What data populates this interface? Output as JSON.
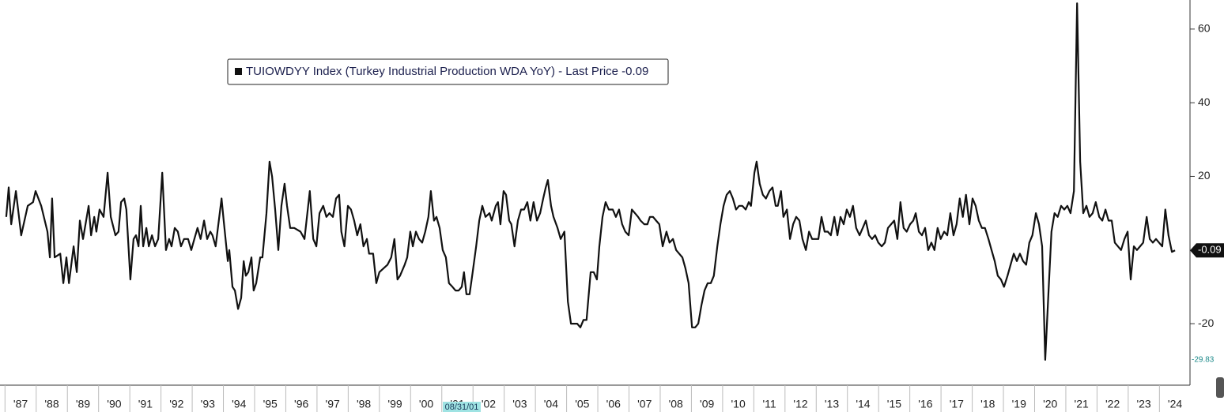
{
  "chart_data": {
    "type": "line",
    "legend": "TUIOWDYY Index (Turkey Industrial Production WDA YoY) - Last Price -0.09",
    "last_value": -0.09,
    "min_value": -29.83,
    "cursor_label": "08/31/01",
    "xlim": [
      1986.84,
      2024.98
    ],
    "ylim": [
      -36.7,
      67.9
    ],
    "yticks": [
      -20,
      20,
      40,
      60
    ],
    "xticks": [
      {
        "value": 1987,
        "label": "'87"
      },
      {
        "value": 1988,
        "label": "'88"
      },
      {
        "value": 1989,
        "label": "'89"
      },
      {
        "value": 1990,
        "label": "'90"
      },
      {
        "value": 1991,
        "label": "'91"
      },
      {
        "value": 1992,
        "label": "'92"
      },
      {
        "value": 1993,
        "label": "'93"
      },
      {
        "value": 1994,
        "label": "'94"
      },
      {
        "value": 1995,
        "label": "'95"
      },
      {
        "value": 1996,
        "label": "'96"
      },
      {
        "value": 1997,
        "label": "'97"
      },
      {
        "value": 1998,
        "label": "'98"
      },
      {
        "value": 1999,
        "label": "'99"
      },
      {
        "value": 2000,
        "label": "'00"
      },
      {
        "value": 2001,
        "label": "'01"
      },
      {
        "value": 2002,
        "label": "'02"
      },
      {
        "value": 2003,
        "label": "'03"
      },
      {
        "value": 2004,
        "label": "'04"
      },
      {
        "value": 2005,
        "label": "'05"
      },
      {
        "value": 2006,
        "label": "'06"
      },
      {
        "value": 2007,
        "label": "'07"
      },
      {
        "value": 2008,
        "label": "'08"
      },
      {
        "value": 2009,
        "label": "'09"
      },
      {
        "value": 2010,
        "label": "'10"
      },
      {
        "value": 2011,
        "label": "'11"
      },
      {
        "value": 2012,
        "label": "'12"
      },
      {
        "value": 2013,
        "label": "'13"
      },
      {
        "value": 2014,
        "label": "'14"
      },
      {
        "value": 2015,
        "label": "'15"
      },
      {
        "value": 2016,
        "label": "'16"
      },
      {
        "value": 2017,
        "label": "'17"
      },
      {
        "value": 2018,
        "label": "'18"
      },
      {
        "value": 2019,
        "label": "'19"
      },
      {
        "value": 2020,
        "label": "'20"
      },
      {
        "value": 2021,
        "label": "'21"
      },
      {
        "value": 2022,
        "label": "'22"
      },
      {
        "value": 2023,
        "label": "'23"
      },
      {
        "value": 2024,
        "label": "'24"
      }
    ],
    "series": [
      {
        "name": "TUIOWDYY Index",
        "color": "#111111",
        "x": [
          1987.04,
          1987.12,
          1987.2,
          1987.35,
          1987.52,
          1987.73,
          1987.9,
          1987.98,
          1988.16,
          1988.36,
          1988.44,
          1988.51,
          1988.59,
          1988.77,
          1988.87,
          1988.97,
          1989.05,
          1989.2,
          1989.3,
          1989.4,
          1989.5,
          1989.68,
          1989.76,
          1989.86,
          1989.93,
          1990.03,
          1990.16,
          1990.29,
          1990.39,
          1990.54,
          1990.64,
          1990.72,
          1990.82,
          1990.89,
          1991.02,
          1991.12,
          1991.2,
          1991.28,
          1991.35,
          1991.43,
          1991.53,
          1991.61,
          1991.71,
          1991.81,
          1991.91,
          1992.04,
          1992.16,
          1992.26,
          1992.34,
          1992.44,
          1992.54,
          1992.64,
          1992.74,
          1992.87,
          1992.97,
          1993.07,
          1993.17,
          1993.27,
          1993.38,
          1993.48,
          1993.58,
          1993.65,
          1993.75,
          1993.94,
          1994.01,
          1994.14,
          1994.19,
          1994.29,
          1994.37,
          1994.47,
          1994.57,
          1994.65,
          1994.72,
          1994.8,
          1994.9,
          1994.97,
          1995.05,
          1995.18,
          1995.25,
          1995.38,
          1995.48,
          1995.56,
          1995.66,
          1995.76,
          1995.86,
          1995.96,
          1996.04,
          1996.14,
          1996.27,
          1996.47,
          1996.6,
          1996.77,
          1996.88,
          1996.98,
          1997.08,
          1997.2,
          1997.3,
          1997.4,
          1997.51,
          1997.61,
          1997.71,
          1997.78,
          1997.88,
          1997.99,
          1998.09,
          1998.19,
          1998.29,
          1998.39,
          1998.49,
          1998.6,
          1998.67,
          1998.8,
          1998.9,
          1999.0,
          1999.13,
          1999.26,
          1999.38,
          1999.48,
          1999.58,
          1999.66,
          1999.81,
          1999.89,
          1999.99,
          2000.07,
          2000.17,
          2000.27,
          2000.37,
          2000.47,
          2000.57,
          2000.65,
          2000.75,
          2000.83,
          2000.93,
          2001.03,
          2001.13,
          2001.23,
          2001.34,
          2001.44,
          2001.54,
          2001.64,
          2001.71,
          2001.79,
          2001.89,
          2001.99,
          2002.1,
          2002.2,
          2002.3,
          2002.4,
          2002.53,
          2002.6,
          2002.73,
          2002.8,
          2002.88,
          2002.98,
          2003.06,
          2003.16,
          2003.23,
          2003.33,
          2003.44,
          2003.54,
          2003.64,
          2003.74,
          2003.84,
          2003.94,
          2004.05,
          2004.15,
          2004.25,
          2004.33,
          2004.4,
          2004.5,
          2004.58,
          2004.71,
          2004.81,
          2004.93,
          2005.04,
          2005.14,
          2005.34,
          2005.44,
          2005.54,
          2005.64,
          2005.77,
          2005.87,
          2005.97,
          2006.05,
          2006.15,
          2006.25,
          2006.35,
          2006.48,
          2006.58,
          2006.68,
          2006.78,
          2006.88,
          2006.99,
          2007.09,
          2007.19,
          2007.29,
          2007.37,
          2007.49,
          2007.59,
          2007.67,
          2007.77,
          2007.87,
          2007.97,
          2008.08,
          2008.2,
          2008.3,
          2008.41,
          2008.51,
          2008.61,
          2008.71,
          2008.81,
          2008.91,
          2009.02,
          2009.12,
          2009.22,
          2009.32,
          2009.42,
          2009.52,
          2009.62,
          2009.72,
          2009.83,
          2009.93,
          2010.03,
          2010.13,
          2010.23,
          2010.33,
          2010.43,
          2010.53,
          2010.63,
          2010.74,
          2010.84,
          2010.91,
          2011.02,
          2011.09,
          2011.19,
          2011.29,
          2011.39,
          2011.5,
          2011.6,
          2011.7,
          2011.77,
          2011.87,
          2011.95,
          2012.06,
          2012.16,
          2012.26,
          2012.36,
          2012.46,
          2012.56,
          2012.67,
          2012.77,
          2012.87,
          2012.97,
          2013.07,
          2013.17,
          2013.27,
          2013.37,
          2013.47,
          2013.58,
          2013.68,
          2013.78,
          2013.88,
          2013.98,
          2014.08,
          2014.18,
          2014.28,
          2014.39,
          2014.49,
          2014.59,
          2014.69,
          2014.79,
          2014.89,
          2014.99,
          2015.1,
          2015.2,
          2015.3,
          2015.4,
          2015.5,
          2015.6,
          2015.7,
          2015.8,
          2015.9,
          2016.01,
          2016.11,
          2016.19,
          2016.29,
          2016.39,
          2016.49,
          2016.59,
          2016.69,
          2016.79,
          2016.89,
          2016.99,
          2017.1,
          2017.2,
          2017.3,
          2017.4,
          2017.5,
          2017.6,
          2017.7,
          2017.8,
          2017.91,
          2018.01,
          2018.11,
          2018.21,
          2018.31,
          2018.41,
          2018.52,
          2018.62,
          2018.72,
          2018.82,
          2018.92,
          2019.02,
          2019.13,
          2019.23,
          2019.33,
          2019.43,
          2019.53,
          2019.63,
          2019.73,
          2019.83,
          2019.93,
          2020.04,
          2020.14,
          2020.24,
          2020.34,
          2020.44,
          2020.54,
          2020.64,
          2020.74,
          2020.85,
          2020.95,
          2021.05,
          2021.15,
          2021.26,
          2021.36,
          2021.46,
          2021.56,
          2021.66,
          2021.76,
          2021.86,
          2021.96,
          2022.07,
          2022.17,
          2022.27,
          2022.37,
          2022.47,
          2022.57,
          2022.67,
          2022.77,
          2022.88,
          2022.98,
          2023.08,
          2023.18,
          2023.28,
          2023.38,
          2023.48,
          2023.59,
          2023.69,
          2023.79,
          2023.89,
          2023.99,
          2024.09,
          2024.19,
          2024.29,
          2024.4,
          2024.5
        ],
        "values": [
          9,
          17,
          7,
          16,
          4,
          12,
          13,
          16,
          12,
          5,
          -2,
          14,
          -2,
          -1,
          -9,
          -2,
          -9,
          1,
          -6,
          8,
          3,
          12,
          4,
          9,
          5,
          11,
          9,
          21,
          9,
          4,
          5,
          13,
          14,
          11,
          -8,
          3,
          4,
          1,
          12,
          1,
          6,
          1,
          4,
          1,
          3,
          21,
          0,
          3,
          1,
          6,
          5,
          1,
          3,
          3,
          0,
          3,
          6,
          3,
          8,
          3,
          5,
          4,
          1,
          14,
          8,
          -3,
          0,
          -10,
          -11,
          -16,
          -13,
          -3,
          -7,
          -6,
          -2,
          -11,
          -9,
          -2,
          -2,
          10,
          24,
          20,
          11,
          0,
          12,
          18,
          12,
          6,
          6,
          5,
          3,
          16,
          3,
          1,
          10,
          12,
          9,
          10,
          9,
          14,
          15,
          5,
          1,
          12,
          11,
          8,
          4,
          7,
          1,
          3,
          -1,
          -1,
          -9,
          -6,
          -5,
          -4,
          -2,
          3,
          -8,
          -7,
          -4,
          -2,
          5,
          1,
          5,
          3,
          2,
          5,
          9,
          16,
          8,
          9,
          6,
          0,
          -2,
          -9,
          -10,
          -11,
          -11,
          -10,
          -6,
          -12,
          -12,
          -6,
          1,
          8,
          12,
          9,
          10,
          8,
          12,
          13,
          7,
          16,
          15,
          8,
          7,
          1,
          8,
          11,
          11,
          13,
          8,
          13,
          8,
          10,
          14,
          17,
          19,
          12,
          9,
          6,
          3,
          5,
          -14,
          -20,
          -20,
          -21,
          -19,
          -19,
          -6,
          -6,
          -8,
          1,
          9,
          13,
          11,
          11,
          9,
          11,
          7,
          5,
          4,
          11,
          10,
          9,
          8,
          7,
          7,
          9,
          9,
          8,
          7,
          1,
          5,
          2,
          3,
          0,
          -1,
          -2,
          -5,
          -9,
          -21,
          -21,
          -20,
          -15,
          -11,
          -9,
          -9,
          -7,
          1,
          7,
          12,
          15,
          16,
          14,
          11,
          12,
          12,
          11,
          13,
          12,
          21,
          24,
          18,
          15,
          14,
          16,
          17,
          12,
          12,
          16,
          9,
          11,
          3,
          7,
          9,
          8,
          3,
          0,
          5,
          3,
          3,
          3,
          9,
          5,
          5,
          4,
          9,
          4,
          9,
          7,
          11,
          9,
          12,
          6,
          4,
          6,
          8,
          4,
          3,
          4,
          2,
          1,
          2,
          6,
          7,
          8,
          3,
          13,
          6,
          5,
          7,
          8,
          10,
          5,
          4,
          6,
          0,
          2,
          0,
          6,
          3,
          5,
          4,
          10,
          4,
          7,
          14,
          9,
          15,
          7,
          14,
          12,
          8,
          6,
          6,
          3,
          0,
          -3,
          -7,
          -8,
          -10,
          -7,
          -4,
          -1,
          -3,
          -1,
          -3,
          -4,
          2,
          4,
          10,
          7,
          1,
          -29.83,
          -12,
          5,
          10,
          9,
          12,
          11,
          12,
          10,
          16,
          67,
          24,
          10,
          12,
          9,
          10,
          13,
          9,
          8,
          11,
          8,
          8,
          2,
          1,
          0,
          3,
          5,
          -8,
          1,
          0,
          1,
          2,
          9,
          3,
          2,
          3,
          2,
          1,
          11,
          4,
          -0.5,
          -0.09
        ]
      }
    ]
  }
}
